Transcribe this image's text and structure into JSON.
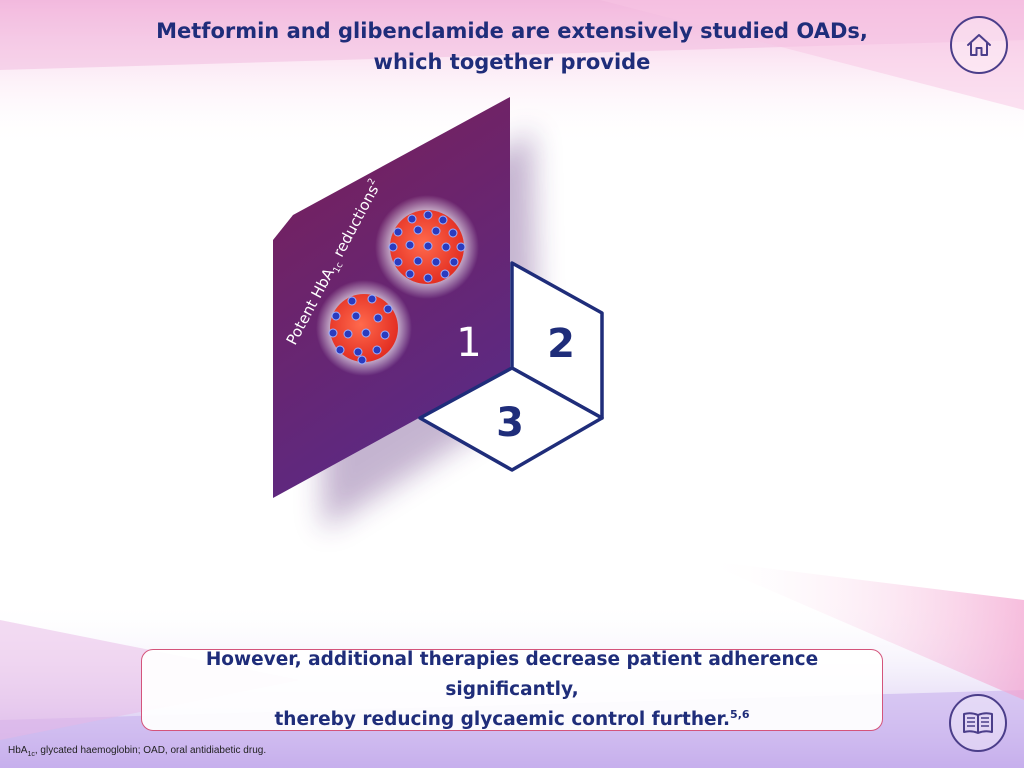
{
  "header": {
    "title_line1": "Metformin and glibenclamide are extensively studied OADs,",
    "title_line2": "which together provide"
  },
  "nav": {
    "home_icon": "home-icon",
    "references_icon": "book-icon"
  },
  "cube": {
    "panel_label_prefix": "Potent HbA",
    "panel_label_sub": "1c",
    "panel_label_suffix": " reductions",
    "panel_label_sup": "2",
    "face_1": "1",
    "face_2": "2",
    "face_3": "3"
  },
  "message": {
    "line1": "However, additional therapies decrease patient adherence significantly,",
    "line2": "thereby reducing glycaemic control further.",
    "refs": "5,6"
  },
  "footnote": {
    "prefix": "HbA",
    "sub": "1c",
    "text": ", glycated haemoglobin; OAD, oral antidiabetic drug."
  },
  "colors": {
    "navy": "#1f2d7a",
    "panel_top": "#7a1f57",
    "panel_bottom": "#5b2a84",
    "pill_red": "#ee3322",
    "dot_blue": "#2a3bbf",
    "message_border": "#d4547b"
  }
}
